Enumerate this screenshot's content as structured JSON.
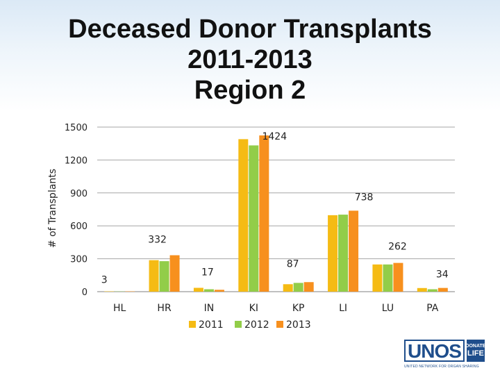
{
  "chart_data": {
    "type": "bar",
    "title": [
      "Deceased Donor Transplants",
      "2011-2013",
      "Region 2"
    ],
    "xlabel": "",
    "ylabel": "# of Transplants",
    "ylim": [
      0,
      1500
    ],
    "yticks": [
      0,
      300,
      600,
      900,
      1200,
      1500
    ],
    "categories": [
      "HL",
      "HR",
      "IN",
      "KI",
      "KP",
      "LI",
      "LU",
      "PA"
    ],
    "series": [
      {
        "name": "2011",
        "color": "#f5bb14",
        "values": [
          3,
          287,
          35,
          1390,
          68,
          697,
          248,
          33
        ]
      },
      {
        "name": "2012",
        "color": "#92cd49",
        "values": [
          2,
          278,
          22,
          1333,
          80,
          702,
          248,
          22
        ]
      },
      {
        "name": "2013",
        "color": "#f7901e",
        "values": [
          3,
          332,
          17,
          1424,
          87,
          738,
          262,
          34
        ]
      }
    ],
    "data_labels": [
      {
        "category": "HL",
        "text": "3"
      },
      {
        "category": "HR",
        "text": "332"
      },
      {
        "category": "IN",
        "text": "17"
      },
      {
        "category": "KI",
        "text": "1424"
      },
      {
        "category": "KP",
        "text": "87"
      },
      {
        "category": "LI",
        "text": "738"
      },
      {
        "category": "LU",
        "text": "262"
      },
      {
        "category": "PA",
        "text": "34"
      }
    ],
    "legend": "bottom",
    "grid": true
  },
  "logo": {
    "main_text": "UNOS",
    "side_top": "DONATE",
    "side_bottom": "LIFE",
    "tagline": "UNITED NETWORK FOR ORGAN SHARING"
  },
  "colors": {
    "grid": "#a6a6a6",
    "axis": "#7f7f7f"
  }
}
